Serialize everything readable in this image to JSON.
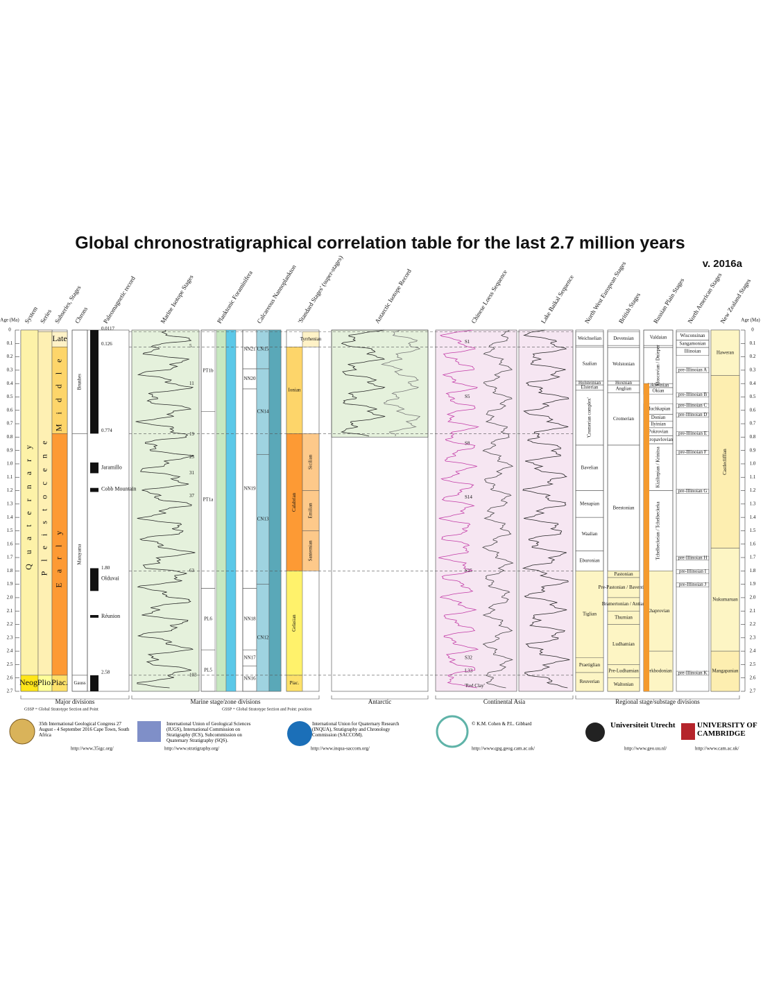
{
  "header": {
    "title": "Global chronostratigraphical correlation table for the last 2.7 million years",
    "version": "v. 2016a"
  },
  "age_axis": {
    "label": "Age (Ma)",
    "ticks": [
      "0",
      "0.1",
      "0.2",
      "0.3",
      "0.4",
      "0.5",
      "0.6",
      "0.7",
      "0.8",
      "0.9",
      "1.0",
      "1.1",
      "1.2",
      "1.3",
      "1.4",
      "1.5",
      "1.6",
      "1.7",
      "1.8",
      "1.9",
      "2.0",
      "2.1",
      "2.2",
      "2.3",
      "2.4",
      "2.5",
      "2.6",
      "2.7"
    ]
  },
  "boundaries": [
    {
      "value": 0.0117,
      "label": "0.0117"
    },
    {
      "value": 0.126,
      "label": "0.126"
    },
    {
      "value": 0.774,
      "label": "0.774"
    },
    {
      "value": 1.8,
      "label": "1.80"
    },
    {
      "value": 2.58,
      "label": "2.58"
    }
  ],
  "columns": [
    {
      "title": "System",
      "units": [
        {
          "name": "Quaternary",
          "top": 0,
          "base": 2.58,
          "color": "#fdf2a8"
        },
        {
          "name": "Neog.",
          "top": 2.58,
          "base": 2.7,
          "color": "#ffe619"
        }
      ]
    },
    {
      "title": "Series",
      "units": [
        {
          "name": "Holocene",
          "top": 0,
          "base": 0.0117,
          "color": "#fef2e0"
        },
        {
          "name": "Pleistocene",
          "top": 0.0117,
          "base": 2.58,
          "color": "#fef0b3"
        },
        {
          "name": "Plio.",
          "top": 2.58,
          "base": 2.7,
          "color": "#ffff99"
        }
      ]
    },
    {
      "title": "Subseries, Stages",
      "units": [
        {
          "name": "Late",
          "top": 0.0117,
          "base": 0.126,
          "color": "#fff2c7"
        },
        {
          "name": "Middle",
          "top": 0.126,
          "base": 0.774,
          "color": "#fdd56a"
        },
        {
          "name": "Early",
          "top": 0.774,
          "base": 2.58,
          "color": "#fd9a34"
        },
        {
          "name": "Piac.",
          "top": 2.58,
          "base": 2.7,
          "color": "#fde16a"
        }
      ]
    },
    {
      "title": "Chrons",
      "units": [
        {
          "name": "Brunhes",
          "top": 0,
          "base": 0.774
        },
        {
          "name": "Matuyama",
          "top": 0.774,
          "base": 2.58
        },
        {
          "name": "Gauss",
          "top": 2.58,
          "base": 2.7
        }
      ]
    },
    {
      "title": "Paleomagnetic record",
      "normal_intervals": [
        {
          "top": 0,
          "base": 0.774
        },
        {
          "top": 0.99,
          "base": 1.07
        },
        {
          "top": 1.18,
          "base": 1.21
        },
        {
          "top": 1.78,
          "base": 1.95
        },
        {
          "top": 2.13,
          "base": 2.15
        },
        {
          "top": 2.58,
          "base": 2.7
        }
      ],
      "markers": [
        {
          "name": "Jaramillo",
          "age": 1.03
        },
        {
          "name": "Cobb Mountain",
          "age": 1.19
        },
        {
          "name": "Olduvai",
          "age": 1.86
        },
        {
          "name": "Réunion",
          "age": 2.14
        }
      ]
    },
    {
      "title": "Marine Isotope Stages",
      "markers": [
        {
          "name": "5",
          "age": 0.12
        },
        {
          "name": "11",
          "age": 0.4
        },
        {
          "name": "19",
          "age": 0.78
        },
        {
          "name": "25",
          "age": 0.95
        },
        {
          "name": "31",
          "age": 1.07
        },
        {
          "name": "37",
          "age": 1.24
        },
        {
          "name": "63",
          "age": 1.8
        },
        {
          "name": "103",
          "age": 2.58
        }
      ]
    },
    {
      "title": "Planktonic Foraminifera",
      "units": [
        {
          "name": "PT1b",
          "top": 0,
          "base": 0.61
        },
        {
          "name": "PT1a",
          "top": 0.61,
          "base": 1.93
        },
        {
          "name": "PL6",
          "top": 1.93,
          "base": 2.39
        },
        {
          "name": "PL5",
          "top": 2.39,
          "base": 2.7
        }
      ]
    },
    {
      "title": "Calcareous Nannoplankton",
      "units": [
        {
          "name": "NN21",
          "top": 0,
          "base": 0.29
        },
        {
          "name": "NN20",
          "top": 0.29,
          "base": 0.44
        },
        {
          "name": "NN19",
          "top": 0.44,
          "base": 1.93
        },
        {
          "name": "NN18",
          "top": 1.93,
          "base": 2.39
        },
        {
          "name": "NN17",
          "top": 2.39,
          "base": 2.51
        },
        {
          "name": "NN16",
          "top": 2.51,
          "base": 2.7
        }
      ],
      "substages": [
        {
          "name": "CN15",
          "top": 0,
          "base": 0.29,
          "color": "#9fd3e0"
        },
        {
          "name": "CN14",
          "top": 0.29,
          "base": 0.93,
          "color": "#9fd3e0"
        },
        {
          "name": "CN13",
          "top": 0.93,
          "base": 1.9,
          "color": "#9fd3e0"
        },
        {
          "name": "CN12",
          "top": 1.9,
          "base": 2.7,
          "color": "#9fd3e0"
        }
      ]
    },
    {
      "title": "'Standard Stages' (super-stages)",
      "units": [
        {
          "name": "Ionian",
          "top": 0.126,
          "base": 0.774,
          "color": "#fdd56a"
        },
        {
          "name": "Calabrian",
          "top": 0.774,
          "base": 1.8,
          "color": "#fd9a34"
        },
        {
          "name": "Gelasian",
          "top": 1.8,
          "base": 2.58,
          "color": "#fff26b"
        },
        {
          "name": "Piac.",
          "top": 2.58,
          "base": 2.7,
          "color": "#fde16a"
        }
      ],
      "substages": [
        {
          "name": "Tyrrhenian",
          "top": 0.0117,
          "base": 0.126,
          "color": "#fff2c7"
        },
        {
          "name": "Sicilian",
          "top": 0.774,
          "base": 1.2,
          "color": "#fdc98a"
        },
        {
          "name": "Emilian",
          "top": 1.2,
          "base": 1.5,
          "color": "#fdc98a"
        },
        {
          "name": "Santernian",
          "top": 1.5,
          "base": 1.8,
          "color": "#fdc98a"
        }
      ]
    },
    {
      "title": "Antarctic Isotope Record"
    },
    {
      "title": "Chinese Loess Sequence",
      "markers": [
        {
          "name": "S1",
          "age": 0.09
        },
        {
          "name": "S5",
          "age": 0.5
        },
        {
          "name": "S8",
          "age": 0.85
        },
        {
          "name": "S14",
          "age": 1.25
        },
        {
          "name": "S25",
          "age": 1.8
        },
        {
          "name": "S32",
          "age": 2.45
        },
        {
          "name": "L33",
          "age": 2.55
        },
        {
          "name": "'Red Clay'",
          "age": 2.66
        }
      ]
    },
    {
      "title": "Lake Baikal Sequence"
    },
    {
      "title": "North West European Stages",
      "units": [
        {
          "name": "Weichselian",
          "top": 0.0117,
          "base": 0.115
        },
        {
          "name": "Eemian",
          "top": 0.115,
          "base": 0.126
        },
        {
          "name": "Saalian",
          "top": 0.126,
          "base": 0.38
        },
        {
          "name": "Holsteinian",
          "top": 0.38,
          "base": 0.41
        },
        {
          "name": "Elsterian",
          "top": 0.41,
          "base": 0.45
        },
        {
          "name": "'Cromerian complex'",
          "top": 0.45,
          "base": 0.86
        },
        {
          "name": "Bavelian",
          "top": 0.86,
          "base": 1.2
        },
        {
          "name": "Menapian",
          "top": 1.2,
          "base": 1.4
        },
        {
          "name": "Waalian",
          "top": 1.4,
          "base": 1.65
        },
        {
          "name": "Eburonian",
          "top": 1.65,
          "base": 1.8
        },
        {
          "name": "Tiglian",
          "top": 1.8,
          "base": 2.45,
          "color": "#fdf5c4"
        },
        {
          "name": "Praetiglian",
          "top": 2.45,
          "base": 2.56,
          "color": "#fdf5c4"
        },
        {
          "name": "Reuverian",
          "top": 2.56,
          "base": 2.7,
          "color": "#fdf5c4"
        }
      ]
    },
    {
      "title": "British Stages",
      "units": [
        {
          "name": "Devensian",
          "top": 0.0117,
          "base": 0.115
        },
        {
          "name": "Ipswichian",
          "top": 0.115,
          "base": 0.13
        },
        {
          "name": "Wolstonian",
          "top": 0.13,
          "base": 0.38
        },
        {
          "name": "Hoxnian",
          "top": 0.38,
          "base": 0.41
        },
        {
          "name": "Anglian",
          "top": 0.41,
          "base": 0.47
        },
        {
          "name": "Cromerian",
          "top": 0.47,
          "base": 0.86
        },
        {
          "name": "Beestonian",
          "top": 0.86,
          "base": 1.8
        },
        {
          "name": "Pastonian",
          "top": 1.8,
          "base": 1.85,
          "color": "#fdf5c4"
        },
        {
          "name": "Pre-Pastonian / Baventian",
          "top": 1.85,
          "base": 2.0,
          "color": "#fdf5c4"
        },
        {
          "name": "Bramertonian / Antian",
          "top": 2.0,
          "base": 2.1,
          "color": "#fdf5c4"
        },
        {
          "name": "Thurnian",
          "top": 2.1,
          "base": 2.2,
          "color": "#fdf5c4"
        },
        {
          "name": "Ludhamian",
          "top": 2.2,
          "base": 2.5,
          "color": "#fdf5c4"
        },
        {
          "name": "Pre-Ludhamian",
          "top": 2.5,
          "base": 2.6,
          "color": "#fdf5c4"
        },
        {
          "name": "Waltonian",
          "top": 2.6,
          "base": 2.7,
          "color": "#fdf5c4"
        }
      ]
    },
    {
      "title": "Russian Plain Stages",
      "units": [
        {
          "name": "Valdaian",
          "top": 0,
          "base": 0.115
        },
        {
          "name": "Mikulinian",
          "top": 0.115,
          "base": 0.13
        },
        {
          "name": "Moscovian / Dnieper",
          "top": 0.13,
          "base": 0.4
        },
        {
          "name": "Likhvinian",
          "top": 0.4,
          "base": 0.43
        },
        {
          "name": "Okian",
          "top": 0.43,
          "base": 0.48
        },
        {
          "name": "Muchkapian",
          "top": 0.55,
          "base": 0.63
        },
        {
          "name": "Donian",
          "top": 0.63,
          "base": 0.68
        },
        {
          "name": "Ilyinian",
          "top": 0.68,
          "base": 0.73
        },
        {
          "name": "Pokrovian",
          "top": 0.73,
          "base": 0.79
        },
        {
          "name": "Petropavlovian",
          "top": 0.79,
          "base": 0.85
        },
        {
          "name": "Kiziltepian / Krinitsa",
          "top": 0.85,
          "base": 1.2
        },
        {
          "name": "Tchelbeckeian / Tchelbeckeka",
          "top": 1.2,
          "base": 1.8
        },
        {
          "name": "Khaprovian",
          "top": 1.8,
          "base": 2.4,
          "color": "#fdf5c4"
        },
        {
          "name": "Verkhodonian",
          "top": 2.4,
          "base": 2.7,
          "color": "#fdf5c4"
        }
      ]
    },
    {
      "title": "North American Stages",
      "units": [
        {
          "name": "Wisconsinan",
          "top": 0.0117,
          "base": 0.075
        },
        {
          "name": "Sangamonian",
          "top": 0.075,
          "base": 0.13
        },
        {
          "name": "Illinoian",
          "top": 0.13,
          "base": 0.19
        },
        {
          "name": "pre-Illinoian A",
          "top": 0.28,
          "base": 0.32
        },
        {
          "name": "pre-Illinoian B",
          "top": 0.47,
          "base": 0.5
        },
        {
          "name": "pre-Illinoian C",
          "top": 0.55,
          "base": 0.58
        },
        {
          "name": "pre-Illinoian D",
          "top": 0.62,
          "base": 0.65
        },
        {
          "name": "pre-Illinoian E",
          "top": 0.76,
          "base": 0.79
        },
        {
          "name": "pre-Illinoian F",
          "top": 0.9,
          "base": 0.93
        },
        {
          "name": "pre-Illinoian G",
          "top": 1.19,
          "base": 1.22
        },
        {
          "name": "pre-Illinoian H",
          "top": 1.69,
          "base": 1.72
        },
        {
          "name": "pre-Illinoian I",
          "top": 1.79,
          "base": 1.82
        },
        {
          "name": "pre-Illinoian J",
          "top": 1.89,
          "base": 1.92
        },
        {
          "name": "pre-Illinoian K",
          "top": 2.55,
          "base": 2.58
        }
      ]
    },
    {
      "title": "New Zealand Stages",
      "units": [
        {
          "name": "Haweran",
          "top": 0,
          "base": 0.34,
          "color": "#fdf5c4"
        },
        {
          "name": "Castlecliffian",
          "top": 0.34,
          "base": 1.63,
          "color": "#fdeeb0"
        },
        {
          "name": "Nukumaruan",
          "top": 1.63,
          "base": 2.4,
          "color": "#fdf5c4"
        },
        {
          "name": "Mangapanian",
          "top": 2.4,
          "base": 2.7,
          "color": "#fdeeb0"
        }
      ]
    }
  ],
  "groups": [
    "Major divisions",
    "Marine stage/zone divisions",
    "Antarctic",
    "Continental Asia",
    "Regional stage/substage divisions"
  ],
  "notes": [
    "GSSP = Global Stratotype Section and Point",
    "GSSP = Global Stratotype Section and Point: position"
  ],
  "sponsors": [
    {
      "text": "35th International Geological Congress 27 August - 4 September 2016 Cape Town, South Africa",
      "url": "http://www.35igc.org/"
    },
    {
      "text": "International Union of Geological Sciences (IUGS), International Commission on Stratigraphy (ICS), Subcommission on Quaternary Stratigraphy (SQS).",
      "url": "http://www.stratigraphy.org/"
    },
    {
      "text": "International Union for Quaternary Research (INQUA), Stratigraphy and Chronology Commission (SACCOM).",
      "url": "http://www.inqua-saccom.org/"
    },
    {
      "text": "© K.M. Cohen & P.L. Gibbard",
      "url": "http://www.qpg.geog.cam.ac.uk/"
    },
    {
      "text": "Universiteit Utrecht",
      "url": "http://www.geo.uu.nl/"
    },
    {
      "text": "UNIVERSITY OF CAMBRIDGE",
      "url": "http://www.cam.ac.uk/"
    }
  ]
}
